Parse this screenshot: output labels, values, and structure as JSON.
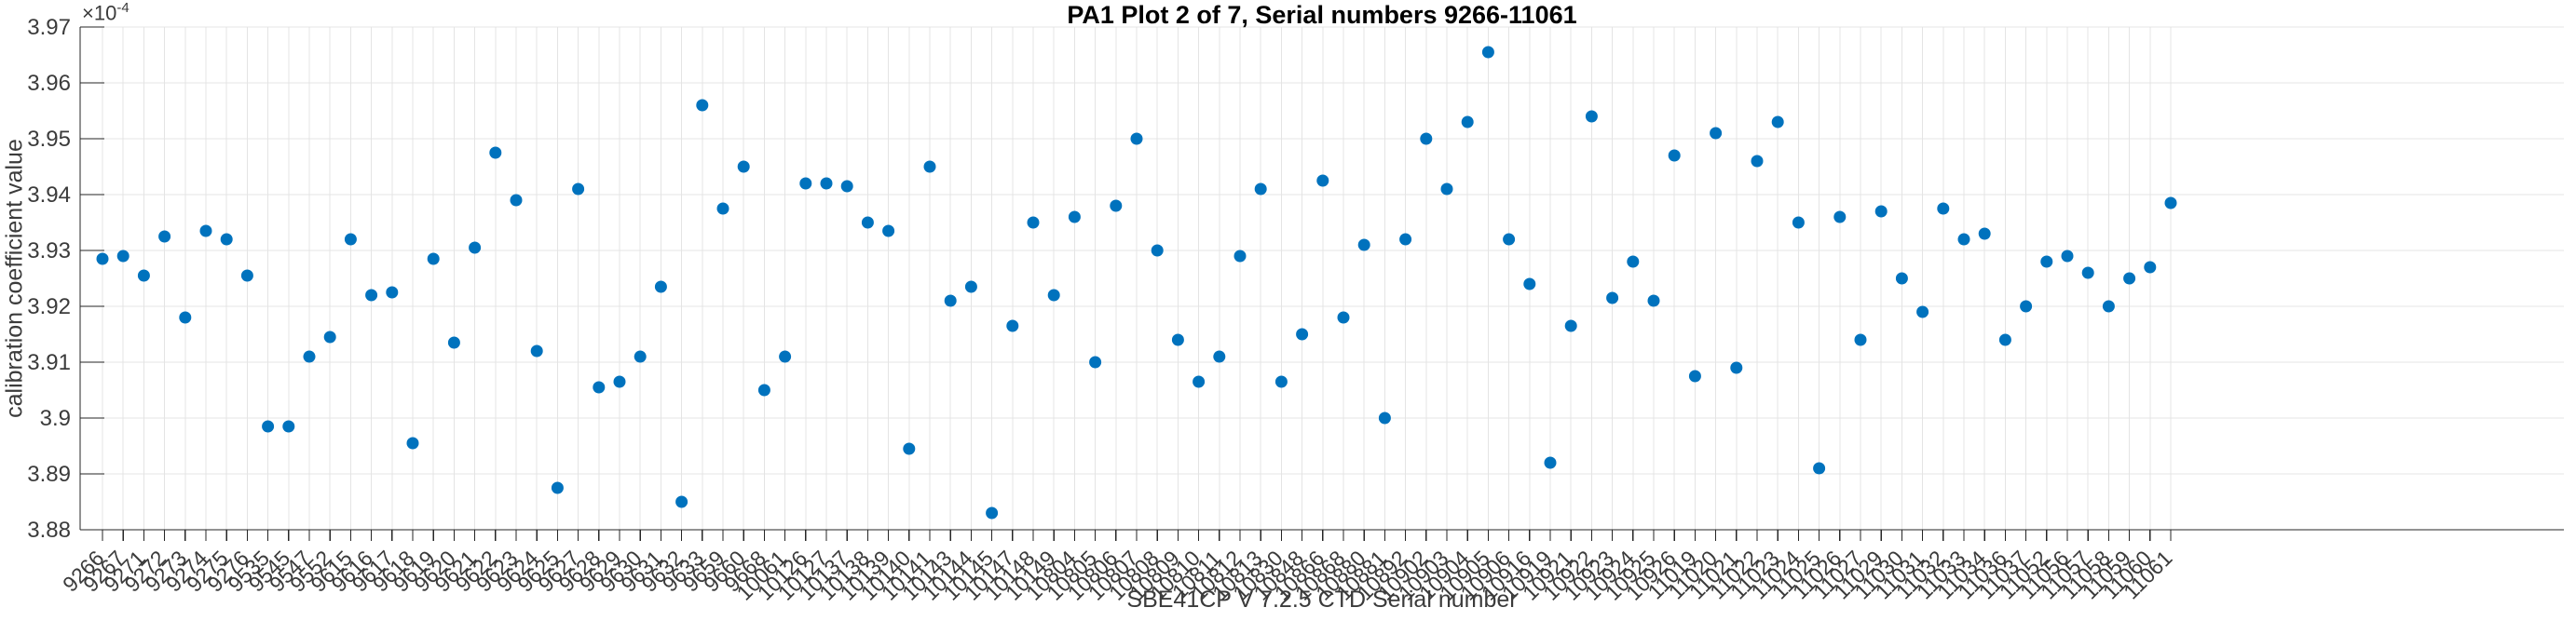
{
  "chart": {
    "title": "PA1 Plot 2 of 7, Serial numbers 9266-11061",
    "ylabel": "calibration coefficient value",
    "xlabel": "SBE41CP V 7.2.5 CTD Serial number",
    "exponent_base": "×10",
    "exponent_power": "-4"
  },
  "chart_data": {
    "type": "scatter",
    "title": "PA1 Plot 2 of 7, Serial numbers 9266-11061",
    "xlabel": "SBE41CP V 7.2.5 CTD Serial number",
    "ylabel": "calibration coefficient value",
    "y_unit_scale": "1e-4",
    "ylim": [
      3.88,
      3.97
    ],
    "yticks": [
      3.88,
      3.89,
      3.9,
      3.91,
      3.92,
      3.93,
      3.94,
      3.95,
      3.96,
      3.97
    ],
    "grid": true,
    "legend": "none",
    "marker_color": "#0072BD",
    "categories": [
      "9266",
      "9267",
      "9271",
      "9272",
      "9273",
      "9274",
      "9275",
      "9276",
      "9535",
      "9545",
      "9547",
      "9552",
      "9615",
      "9616",
      "9617",
      "9618",
      "9619",
      "9620",
      "9621",
      "9622",
      "9623",
      "9624",
      "9625",
      "9627",
      "9628",
      "9629",
      "9630",
      "9631",
      "9632",
      "9633",
      "9659",
      "9660",
      "9668",
      "10061",
      "10126",
      "10127",
      "10137",
      "10138",
      "10139",
      "10140",
      "10141",
      "10143",
      "10144",
      "10145",
      "10147",
      "10148",
      "10149",
      "10804",
      "10805",
      "10806",
      "10807",
      "10808",
      "10809",
      "10810",
      "10811",
      "10812",
      "10813",
      "10830",
      "10848",
      "10866",
      "10868",
      "10880",
      "10881",
      "10892",
      "10902",
      "10903",
      "10904",
      "10905",
      "10906",
      "10916",
      "10919",
      "10921",
      "10922",
      "10923",
      "10924",
      "10925",
      "10926",
      "11019",
      "11020",
      "11021",
      "11022",
      "11023",
      "11024",
      "11025",
      "11026",
      "11027",
      "11029",
      "11030",
      "11031",
      "11032",
      "11033",
      "11034",
      "11036",
      "11037",
      "11052",
      "11056",
      "11057",
      "11058",
      "11059",
      "11060",
      "11061"
    ],
    "values": [
      3.9285,
      3.929,
      3.9255,
      3.9325,
      3.918,
      3.9335,
      3.932,
      3.9255,
      3.8985,
      3.8985,
      3.911,
      3.9145,
      3.932,
      3.922,
      3.9225,
      3.8955,
      3.9285,
      3.9135,
      3.9305,
      3.9475,
      3.939,
      3.912,
      3.8875,
      3.941,
      3.9055,
      3.9065,
      3.911,
      3.9235,
      3.885,
      3.956,
      3.9375,
      3.945,
      3.905,
      3.911,
      3.942,
      3.942,
      3.9415,
      3.935,
      3.9335,
      3.8945,
      3.945,
      3.921,
      3.9235,
      3.883,
      3.9165,
      3.935,
      3.922,
      3.936,
      3.91,
      3.938,
      3.95,
      3.93,
      3.914,
      3.9065,
      3.911,
      3.929,
      3.941,
      3.9065,
      3.915,
      3.9425,
      3.918,
      3.931,
      3.9,
      3.932,
      3.95,
      3.941,
      3.953,
      3.9655,
      3.932,
      3.924,
      3.892,
      3.9165,
      3.954,
      3.9215,
      3.928,
      3.921,
      3.947,
      3.9075,
      3.951,
      3.909,
      3.946,
      3.953,
      3.935,
      3.891,
      3.936,
      3.914,
      3.937,
      3.925,
      3.919,
      3.9375,
      3.932,
      3.933,
      3.914,
      3.92,
      3.928,
      3.929,
      3.926,
      3.92,
      3.925,
      3.927,
      3.9385
    ]
  }
}
